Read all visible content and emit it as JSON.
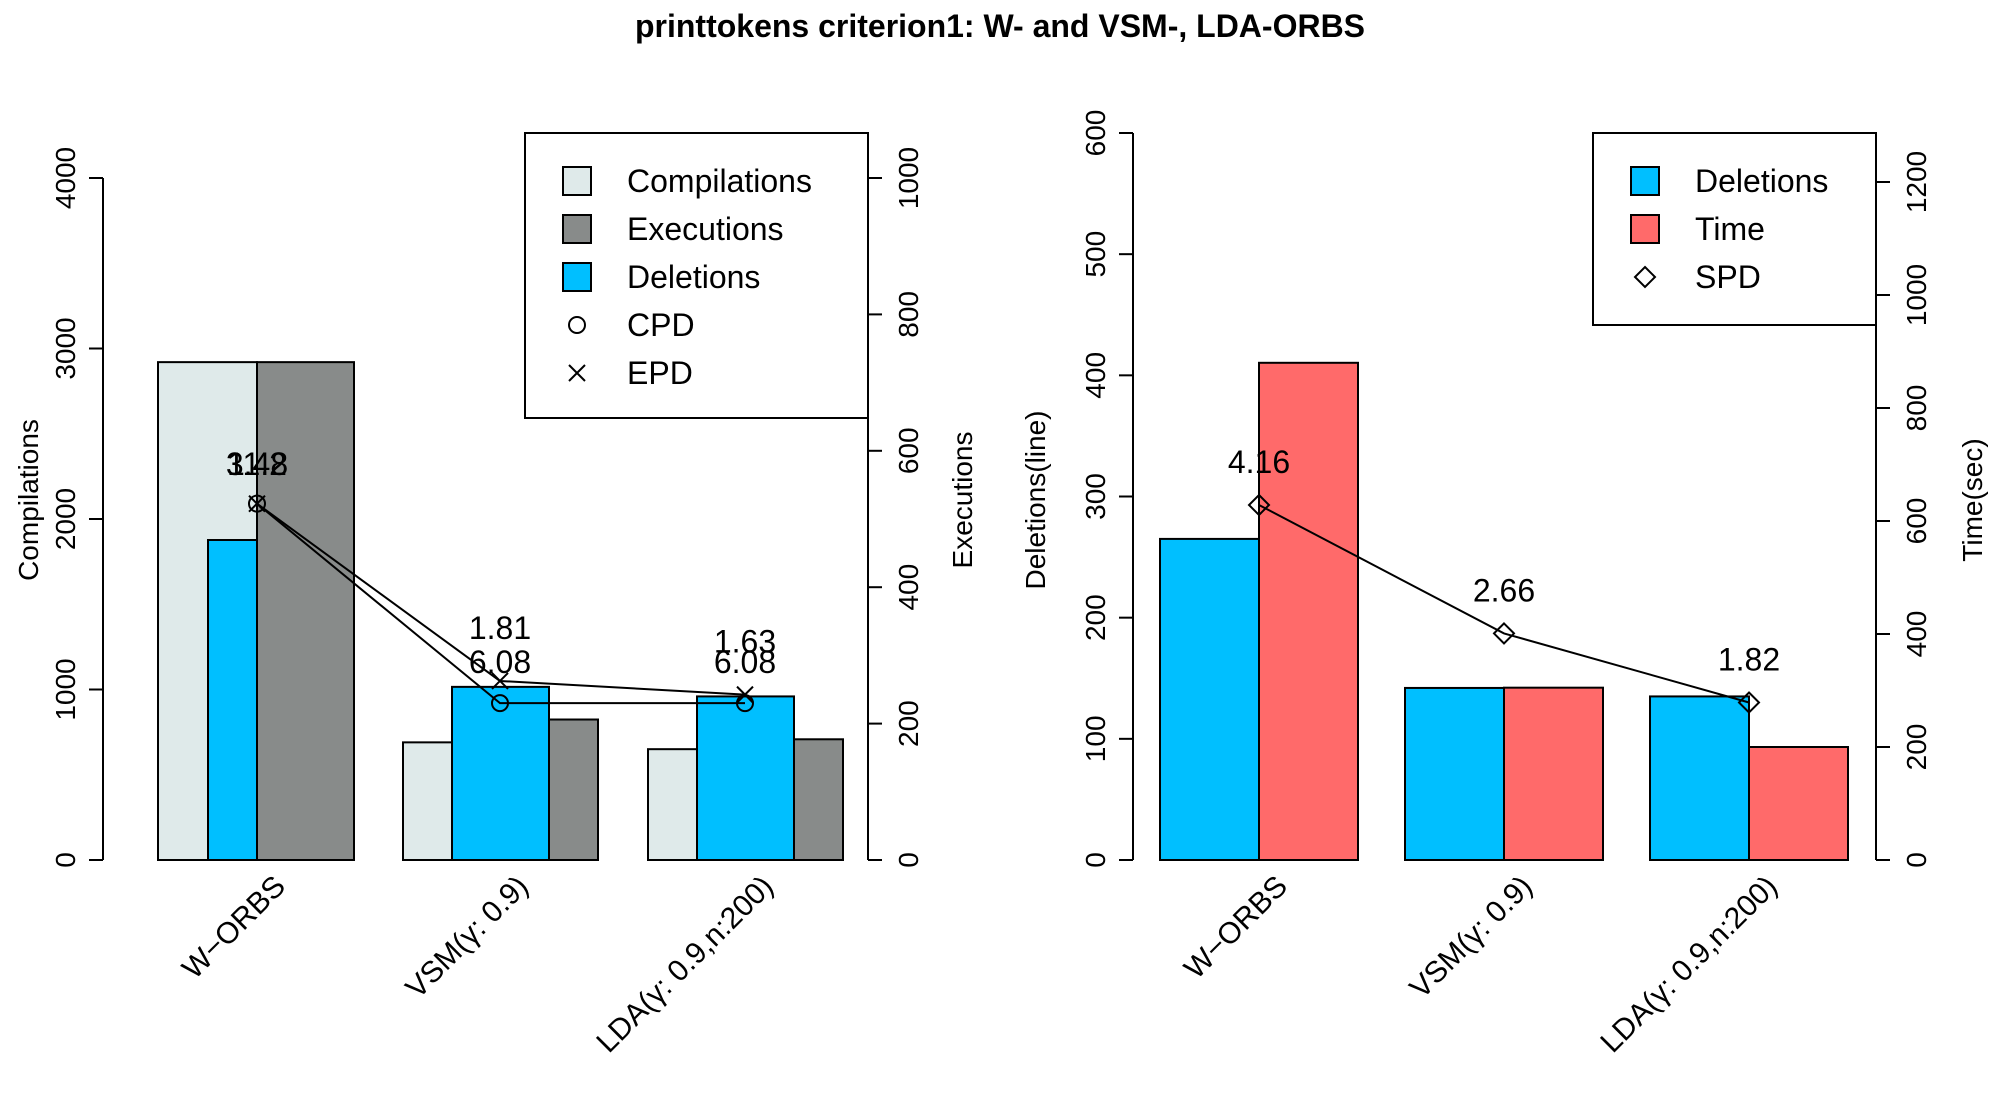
{
  "title": "printtokens criterion1: W- and VSM-, LDA-ORBS",
  "chart_data": [
    {
      "type": "bar",
      "categories": [
        "W−ORBS",
        "VSM(γ: 0.9)",
        "LDA(γ: 0.9,n:200)"
      ],
      "series": [
        {
          "name": "Compilations",
          "axis": "left",
          "color": "#dfeaea",
          "values": [
            2920,
            690,
            650
          ]
        },
        {
          "name": "Deletions",
          "axis": "right_del",
          "color": "#00bfff",
          "values": [
            268,
            145,
            137
          ]
        },
        {
          "name": "Executions",
          "axis": "right",
          "color": "#888b8a",
          "values": [
            730,
            206,
            177
          ]
        }
      ],
      "lines": [
        {
          "name": "CPD",
          "marker": "circle",
          "axis": "left",
          "values": [
            2090,
            920,
            920
          ],
          "labels": [
            "11.2",
            "6.08",
            "6.08"
          ]
        },
        {
          "name": "EPD",
          "marker": "cross",
          "axis": "left",
          "values": [
            2090,
            1050,
            970
          ],
          "labels": [
            "3.48",
            "1.81",
            "1.63"
          ]
        }
      ],
      "ylabel_left": "Compilations",
      "ylabel_right": "Executions",
      "ylim_left": [
        0,
        4000
      ],
      "ylim_right": [
        0,
        1000
      ],
      "yticks_left": [
        "0",
        "1000",
        "2000",
        "3000",
        "4000"
      ],
      "yticks_right": [
        "0",
        "200",
        "400",
        "600",
        "800",
        "1000"
      ],
      "legend": [
        "Compilations",
        "Executions",
        "Deletions",
        "CPD",
        "EPD"
      ],
      "legend_position": "top-right",
      "grid": false
    },
    {
      "type": "bar",
      "categories": [
        "W−ORBS",
        "VSM(γ: 0.9)",
        "LDA(γ: 0.9,n:200)"
      ],
      "series": [
        {
          "name": "Deletions",
          "axis": "left",
          "color": "#00bfff",
          "values": [
            265,
            142,
            135
          ]
        },
        {
          "name": "Time",
          "axis": "right",
          "color": "#ff6a6a",
          "values": [
            880,
            305,
            200
          ]
        }
      ],
      "lines": [
        {
          "name": "SPD",
          "marker": "diamond",
          "axis": "left",
          "values": [
            293,
            187,
            130
          ],
          "labels": [
            "4.16",
            "2.66",
            "1.82"
          ]
        }
      ],
      "ylabel_left": "Deletions(line)",
      "ylabel_right": "Time(sec)",
      "ylim_left": [
        0,
        600
      ],
      "ylim_right": [
        0,
        1200
      ],
      "yticks_left": [
        "0",
        "100",
        "200",
        "300",
        "400",
        "500",
        "600"
      ],
      "yticks_right": [
        "0",
        "200",
        "400",
        "600",
        "800",
        "1000",
        "1200"
      ],
      "legend": [
        "Deletions",
        "Time",
        "SPD"
      ],
      "legend_position": "top-right",
      "grid": false
    }
  ]
}
